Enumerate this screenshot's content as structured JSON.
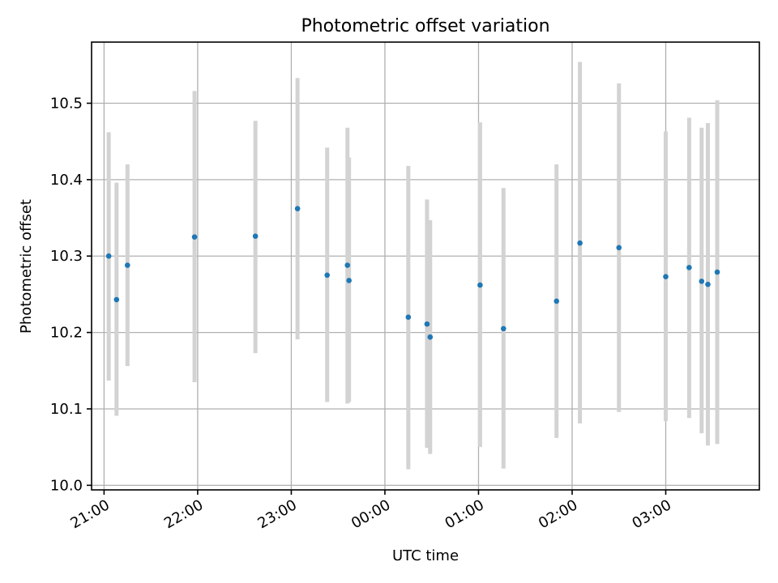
{
  "chart_data": {
    "type": "scatter",
    "title": "Photometric offset variation",
    "xlabel": "UTC time",
    "ylabel": "Photometric offset",
    "x_type": "time",
    "x_start": "20:55",
    "xlim": [
      "20:52",
      "04:00"
    ],
    "ylim": [
      9.994,
      10.58
    ],
    "x_ticks": [
      "21:00",
      "22:00",
      "23:00",
      "00:00",
      "01:00",
      "02:00",
      "03:00"
    ],
    "y_ticks": [
      "10.0",
      "10.1",
      "10.2",
      "10.3",
      "10.4",
      "10.5"
    ],
    "grid": true,
    "colors": {
      "point": "#1f77b4",
      "errorbar": "#d3d3d3"
    },
    "points": [
      {
        "x": "21:03",
        "y": 10.3,
        "ylow": 10.137,
        "yhigh": 10.462
      },
      {
        "x": "21:08",
        "y": 10.243,
        "ylow": 10.091,
        "yhigh": 10.396
      },
      {
        "x": "21:15",
        "y": 10.288,
        "ylow": 10.156,
        "yhigh": 10.42
      },
      {
        "x": "21:58",
        "y": 10.325,
        "ylow": 10.135,
        "yhigh": 10.516
      },
      {
        "x": "22:37",
        "y": 10.326,
        "ylow": 10.173,
        "yhigh": 10.477
      },
      {
        "x": "23:04",
        "y": 10.362,
        "ylow": 10.191,
        "yhigh": 10.533
      },
      {
        "x": "23:23",
        "y": 10.275,
        "ylow": 10.109,
        "yhigh": 10.442
      },
      {
        "x": "23:36",
        "y": 10.288,
        "ylow": 10.107,
        "yhigh": 10.468
      },
      {
        "x": "23:37",
        "y": 10.268,
        "ylow": 10.109,
        "yhigh": 10.429
      },
      {
        "x": "00:15",
        "y": 10.22,
        "ylow": 10.021,
        "yhigh": 10.418
      },
      {
        "x": "00:27",
        "y": 10.211,
        "ylow": 10.049,
        "yhigh": 10.374
      },
      {
        "x": "00:29",
        "y": 10.194,
        "ylow": 10.041,
        "yhigh": 10.347
      },
      {
        "x": "01:01",
        "y": 10.262,
        "ylow": 10.05,
        "yhigh": 10.475
      },
      {
        "x": "01:16",
        "y": 10.205,
        "ylow": 10.022,
        "yhigh": 10.389
      },
      {
        "x": "01:50",
        "y": 10.241,
        "ylow": 10.062,
        "yhigh": 10.42
      },
      {
        "x": "02:05",
        "y": 10.317,
        "ylow": 10.081,
        "yhigh": 10.554
      },
      {
        "x": "02:30",
        "y": 10.311,
        "ylow": 10.096,
        "yhigh": 10.526
      },
      {
        "x": "03:00",
        "y": 10.273,
        "ylow": 10.084,
        "yhigh": 10.463
      },
      {
        "x": "03:15",
        "y": 10.285,
        "ylow": 10.088,
        "yhigh": 10.481
      },
      {
        "x": "03:23",
        "y": 10.267,
        "ylow": 10.068,
        "yhigh": 10.468
      },
      {
        "x": "03:27",
        "y": 10.263,
        "ylow": 10.052,
        "yhigh": 10.474
      },
      {
        "x": "03:33",
        "y": 10.279,
        "ylow": 10.054,
        "yhigh": 10.504
      }
    ]
  }
}
